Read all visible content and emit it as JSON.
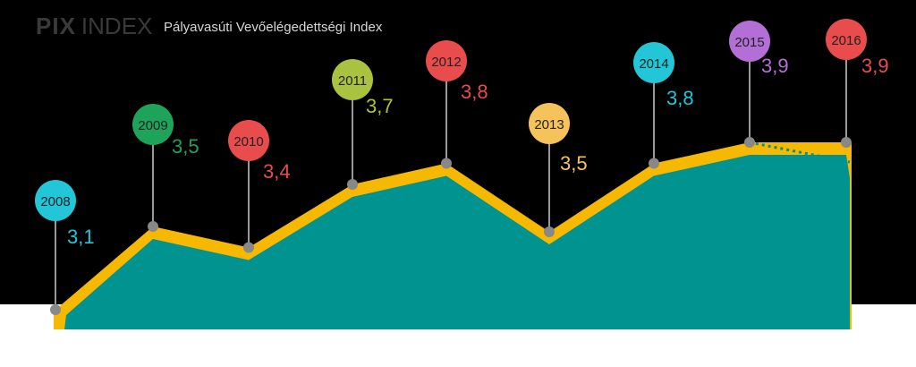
{
  "header": {
    "brand_bold": "PIX",
    "brand_light": "INDEX",
    "subtitle": "Pályavasúti Vevőelégedettségi Index"
  },
  "colors": {
    "background": "#000000",
    "band": "#f6b800",
    "area": "#00938f",
    "stem": "#999999",
    "marker": "#888888"
  },
  "chart_data": {
    "type": "area",
    "title": "Pályavasúti Vevőelégedettségi Index",
    "x": [
      "2008",
      "2009",
      "2010",
      "2011",
      "2012",
      "2013",
      "2014",
      "2015",
      "2016"
    ],
    "values": [
      3.1,
      3.5,
      3.4,
      3.7,
      3.8,
      3.5,
      3.8,
      3.9,
      3.9
    ],
    "value_labels": [
      "3,1",
      "3,5",
      "3,4",
      "3,7",
      "3,8",
      "3,5",
      "3,8",
      "3,9",
      "3,9"
    ],
    "point_colors": [
      "#22c6d6",
      "#1ea35a",
      "#e84c4c",
      "#a9c23f",
      "#e84c4c",
      "#f5c35a",
      "#22c6d6",
      "#b46fd6",
      "#e84c4c"
    ],
    "grid": false,
    "legend": "none"
  }
}
